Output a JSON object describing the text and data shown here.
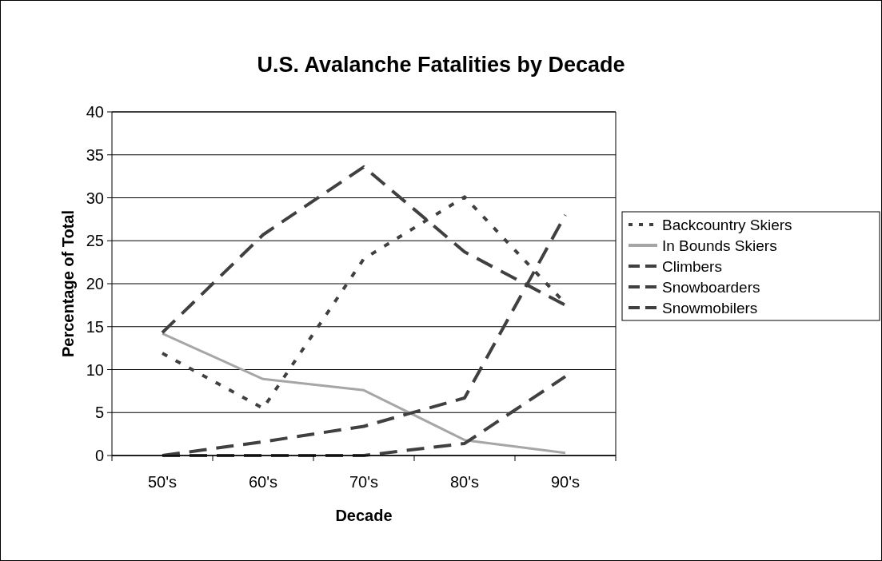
{
  "chart_data": {
    "type": "line",
    "title": "U.S. Avalanche Fatalities by Decade",
    "xlabel": "Decade",
    "ylabel": "Percentage of Total",
    "categories": [
      "50's",
      "60's",
      "70's",
      "80's",
      "90's"
    ],
    "ylim": [
      0,
      40
    ],
    "yticks": [
      0,
      5,
      10,
      15,
      20,
      25,
      30,
      35,
      40
    ],
    "grid": "y",
    "legend": "right",
    "series": [
      {
        "name": "Backcountry Skiers",
        "color": "#404040",
        "line_style": "dotted",
        "values": [
          11.9,
          5.5,
          22.9,
          30.1,
          17.7
        ]
      },
      {
        "name": "In Bounds Skiers",
        "color": "#a6a6a6",
        "line_style": "solid",
        "values": [
          14.2,
          8.9,
          7.6,
          1.8,
          0.3
        ]
      },
      {
        "name": "Climbers",
        "color": "#404040",
        "line_style": "dashed",
        "values": [
          14.3,
          25.7,
          33.6,
          23.7,
          17.5
        ]
      },
      {
        "name": "Snowboarders",
        "color": "#404040",
        "line_style": "dashed",
        "values": [
          0,
          0,
          0,
          1.4,
          9.2
        ]
      },
      {
        "name": "Snowmobilers",
        "color": "#404040",
        "line_style": "dashed",
        "values": [
          0,
          1.6,
          3.4,
          6.7,
          28
        ]
      }
    ]
  }
}
